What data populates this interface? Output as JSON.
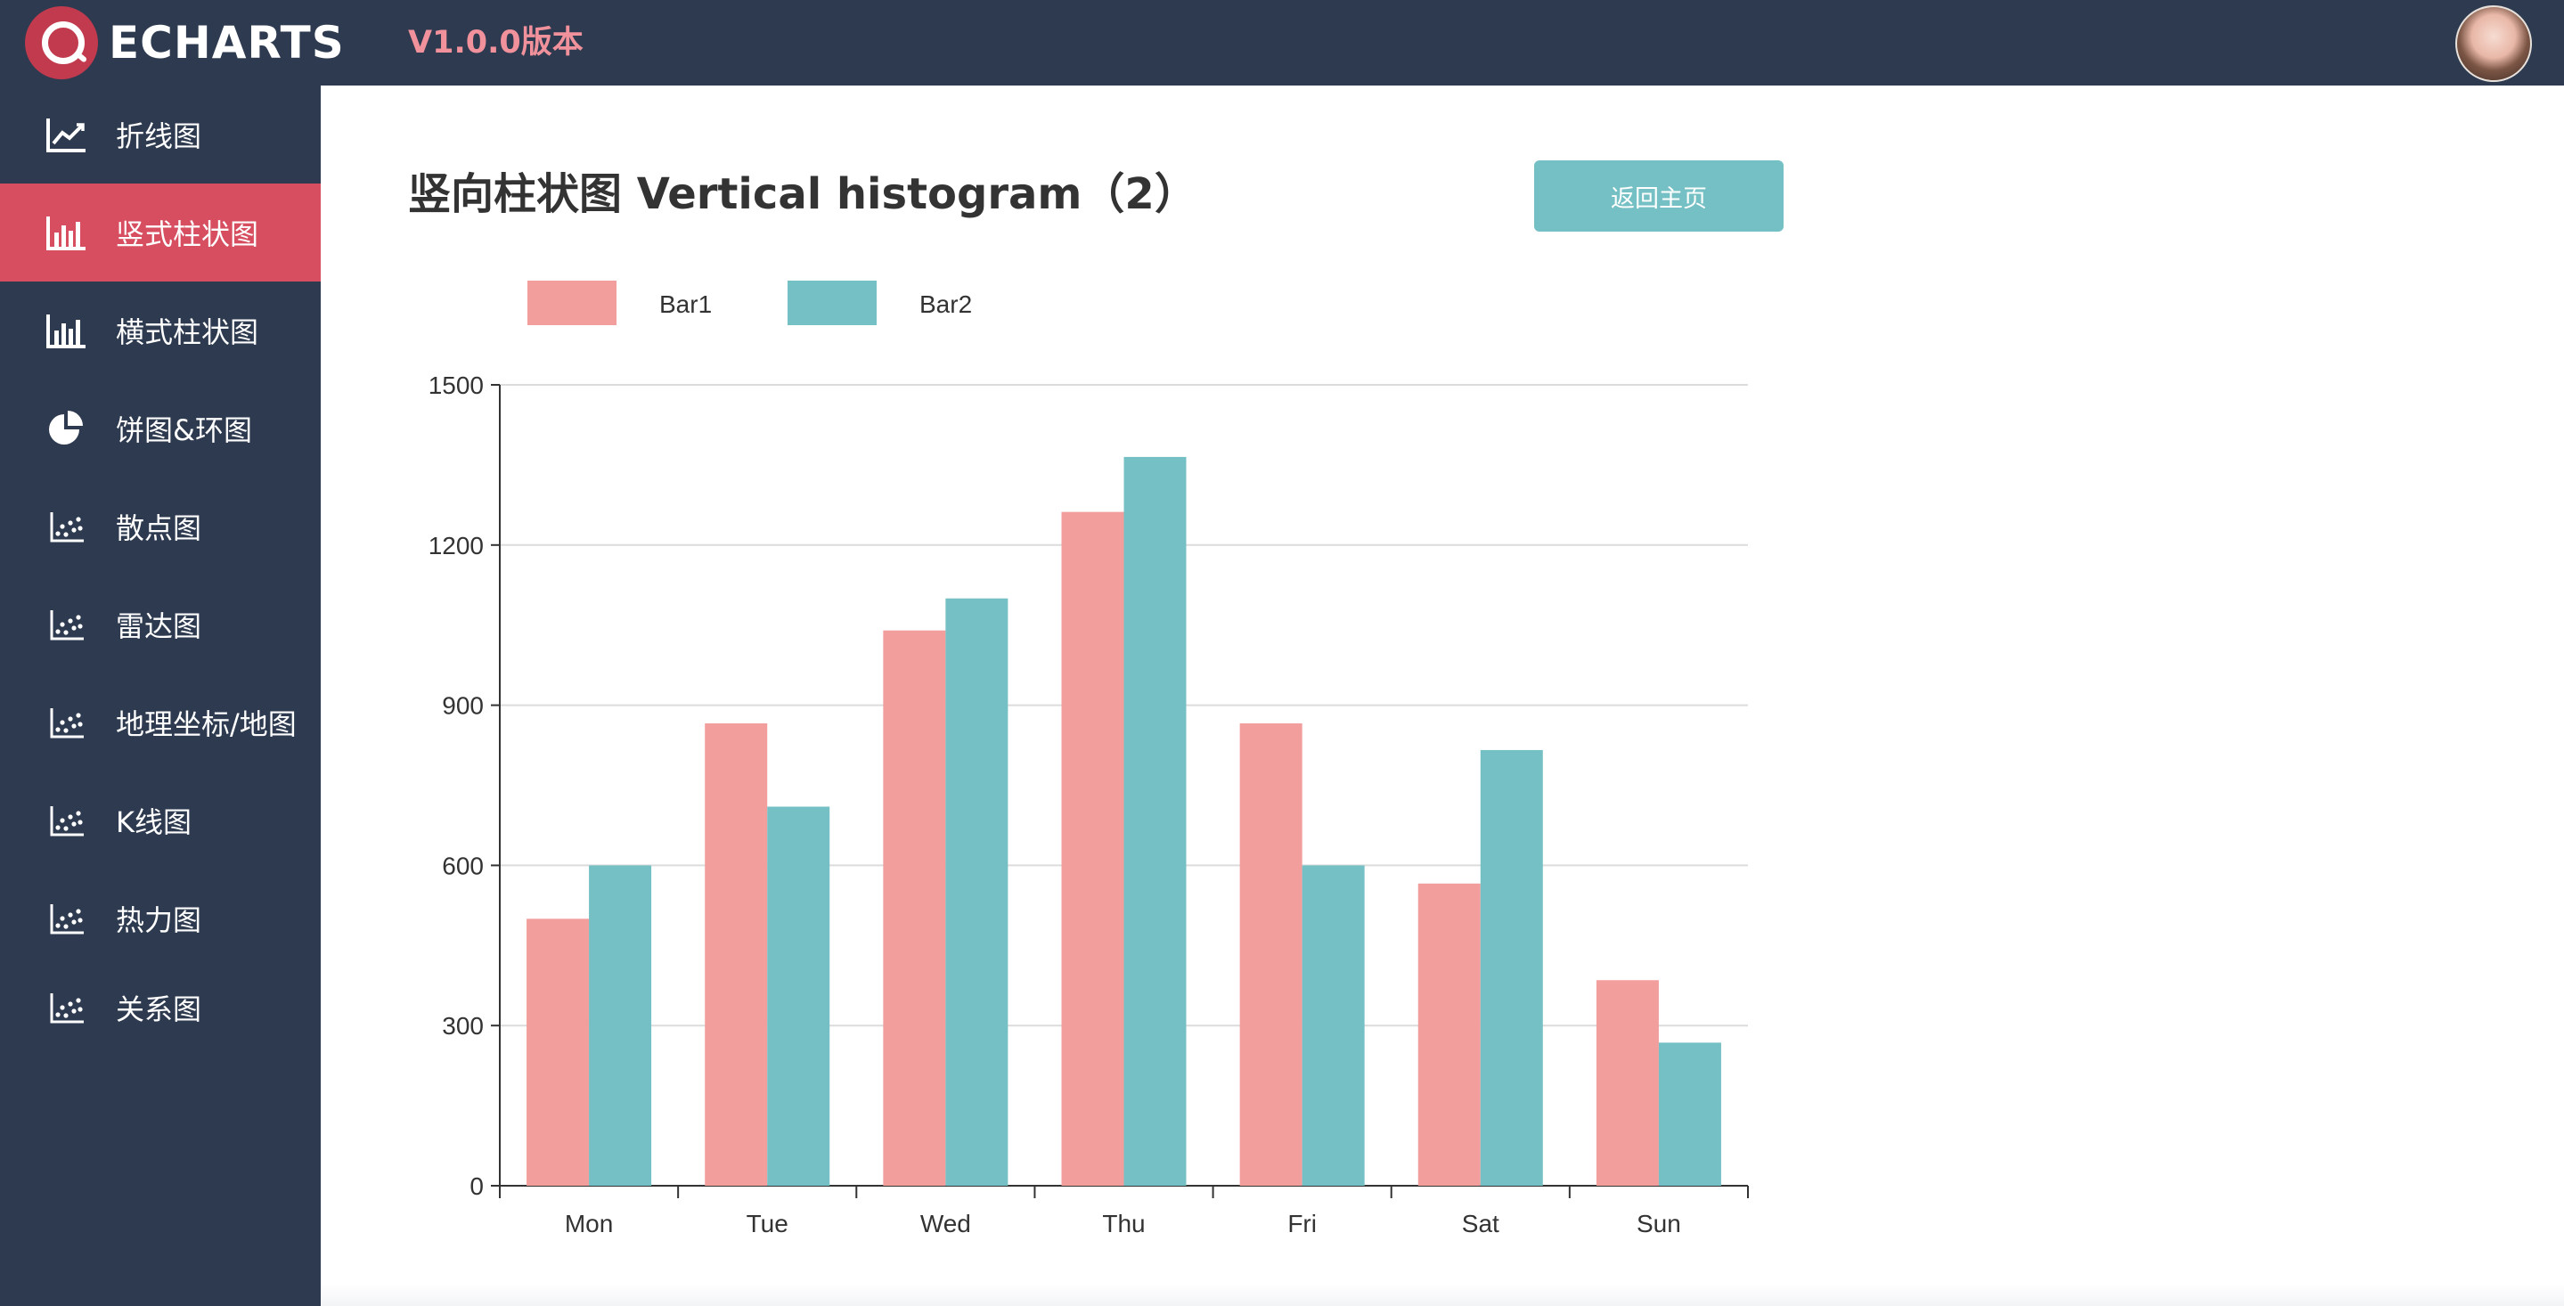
{
  "header": {
    "brand": "ECHARTS",
    "version": "V1.0.0版本"
  },
  "sidebar": {
    "items": [
      {
        "label": "折线图",
        "icon": "line-chart-icon",
        "active": false
      },
      {
        "label": "竖式柱状图",
        "icon": "bar-chart-icon",
        "active": true
      },
      {
        "label": "横式柱状图",
        "icon": "bar-chart-icon",
        "active": false
      },
      {
        "label": "饼图&环图",
        "icon": "pie-chart-icon",
        "active": false
      },
      {
        "label": "散点图",
        "icon": "scatter-chart-icon",
        "active": false
      },
      {
        "label": "雷达图",
        "icon": "scatter-chart-icon",
        "active": false
      },
      {
        "label": "地理坐标/地图",
        "icon": "scatter-chart-icon",
        "active": false
      },
      {
        "label": "K线图",
        "icon": "scatter-chart-icon",
        "active": false
      },
      {
        "label": "热力图",
        "icon": "scatter-chart-icon",
        "active": false
      },
      {
        "label": "关系图",
        "icon": "scatter-chart-icon",
        "active": false
      }
    ]
  },
  "main": {
    "title": "竖向柱状图 Vertical histogram（2）",
    "back_button_label": "返回主页"
  },
  "colors": {
    "sidebar_bg": "#2d3a4f",
    "active_item": "#d64e5f",
    "bar1": "#f29e9c",
    "bar2": "#75c0c4",
    "version_text": "#f0919b"
  },
  "chart_data": {
    "type": "bar",
    "categories": [
      "Mon",
      "Tue",
      "Wed",
      "Thu",
      "Fri",
      "Sat",
      "Sun"
    ],
    "series": [
      {
        "name": "Bar1",
        "values": [
          500,
          866,
          1040,
          1262,
          866,
          566,
          385
        ]
      },
      {
        "name": "Bar2",
        "values": [
          600,
          710,
          1100,
          1365,
          600,
          816,
          268
        ]
      }
    ],
    "yticks": [
      0,
      300,
      600,
      900,
      1200,
      1500
    ],
    "ylim": [
      0,
      1500
    ],
    "grid": true,
    "legend_position": "top-left"
  }
}
